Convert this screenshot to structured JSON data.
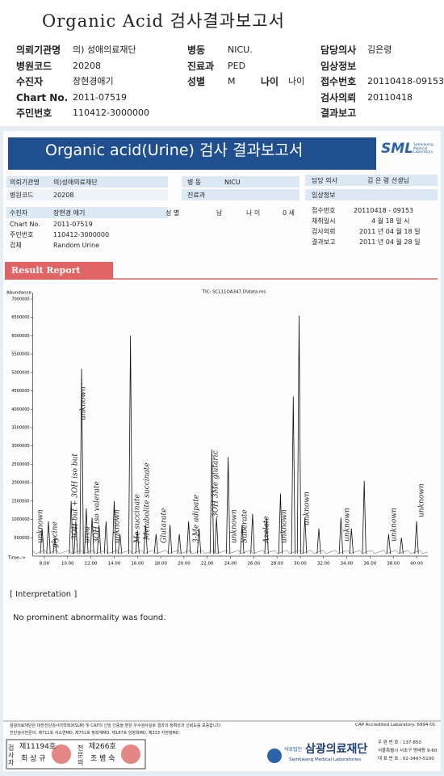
{
  "header": {
    "title": "Organic Acid 검사결과보고서"
  },
  "summary": {
    "rows": [
      [
        {
          "label": "의뢰기관명",
          "value": "의) 성애의료재단"
        },
        {
          "label": "병동",
          "value": "NICU."
        },
        {
          "label": "담당의사",
          "value": "김은령"
        }
      ],
      [
        {
          "label": "병원코드",
          "value": "20208"
        },
        {
          "label": "진료과",
          "value": "PED"
        },
        {
          "label": "임상정보"
        }
      ],
      [
        {
          "label": "수진자",
          "value": "장현경애기"
        },
        {
          "label": "성별",
          "value": "M"
        },
        {
          "label": "나이",
          "value": "나이"
        },
        {
          "label": "접수번호",
          "value": "20110418-09153"
        }
      ],
      [
        {
          "label": "Chart No.",
          "value": "2011-07519"
        },
        {
          "label": "검사의뢰",
          "value": "20110418"
        }
      ],
      [
        {
          "label": "주민번호",
          "value": "110412-3000000"
        },
        {
          "label": "결과보고"
        }
      ]
    ]
  },
  "report": {
    "title": "Organic acid(Urine) 검사 결과보고서",
    "logo": "SML",
    "logo_sub": "Samkwang Medical Laboratory",
    "left": [
      {
        "label": "의뢰기관명",
        "value": "의)성애의료재단"
      },
      {
        "label": "병원코드",
        "value": "20208"
      },
      {
        "label": "수진자",
        "value": "장현경 애기"
      },
      {
        "label": "Chart No.",
        "value": "2011-07519"
      },
      {
        "label": "주민번호",
        "value": "110412-3000000"
      },
      {
        "label": "검체",
        "value": "Random Urine"
      }
    ],
    "middle": [
      {
        "label": "병 동",
        "value": "NICU"
      },
      {
        "label": "진료과"
      },
      {
        "label": "성 별",
        "value": "남"
      },
      {
        "label": "나 이",
        "value": "0 세"
      }
    ],
    "right": [
      {
        "label": "담당 의사",
        "value": "김 은 령  선생님"
      },
      {
        "label": "임상정보"
      },
      {
        "label": "접수번호",
        "value": "20110418 - 09153"
      },
      {
        "label": "채취일시",
        "value": "4 월   18 일       시"
      },
      {
        "label": "검사의뢰",
        "value": "2011 년  04 월  18 일"
      },
      {
        "label": "결과보고",
        "value": "2011 년  04 월  28 일"
      }
    ],
    "section": "Result Report"
  },
  "chart_data": {
    "type": "chromatogram",
    "title": "TIC: SCL11OA347.D\\data.ms",
    "y_label": "Abundance",
    "x_label": "Time-->",
    "color": "#111111",
    "x": [
      7.8,
      8.35,
      8.9,
      10.3,
      10.7,
      11.2,
      11.6,
      12.1,
      12.7,
      13.3,
      14.0,
      14.5,
      15.4,
      16.0,
      16.7,
      17.6,
      18.8,
      19.6,
      20.4,
      21.3,
      22.4,
      22.8,
      23.8,
      25.0,
      25.9,
      27.1,
      28.3,
      29.4,
      29.9,
      30.4,
      31.6,
      33.5,
      34.4,
      35.5,
      37.6,
      38.7,
      40.0
    ],
    "values": [
      750000,
      950000,
      500000,
      1500000,
      950000,
      5100000,
      1300000,
      1050000,
      850000,
      950000,
      1500000,
      600000,
      6000000,
      700000,
      850000,
      600000,
      850000,
      600000,
      950000,
      750000,
      2900000,
      1050000,
      2700000,
      850000,
      1150000,
      1050000,
      1700000,
      4350000,
      6550000,
      1050000,
      750000,
      1050000,
      750000,
      2050000,
      600000,
      500000,
      950000
    ],
    "xlim": [
      7,
      41
    ],
    "ylim": [
      0,
      7000000
    ],
    "xticks": [
      {
        "value": 8,
        "label": "8.00"
      },
      {
        "value": 10,
        "label": "10.00"
      },
      {
        "value": 12,
        "label": "12.00"
      },
      {
        "value": 14,
        "label": "14.00"
      },
      {
        "value": 16,
        "label": "16.00"
      },
      {
        "value": 18,
        "label": "18.00"
      },
      {
        "value": 20,
        "label": "20.00"
      },
      {
        "value": 22,
        "label": "22.00"
      },
      {
        "value": 24,
        "label": "24.00"
      },
      {
        "value": 26,
        "label": "26.00"
      },
      {
        "value": 28,
        "label": "28.00"
      },
      {
        "value": 30,
        "label": "30.00"
      },
      {
        "value": 32,
        "label": "32.00"
      },
      {
        "value": 34,
        "label": "34.00"
      },
      {
        "value": 36,
        "label": "36.00"
      },
      {
        "value": 38,
        "label": "38.00"
      },
      {
        "value": 40,
        "label": "40.00"
      }
    ],
    "yticks": [
      500000,
      1000000,
      1500000,
      2000000,
      2500000,
      3000000,
      3500000,
      4000000,
      4500000,
      5000000,
      5500000,
      6000000,
      6500000,
      7000000
    ],
    "annotations": [
      "unknown",
      "glycine",
      "3OH but + 3OH iso but",
      "unknown",
      "urea",
      "3OH iso valerate",
      "unknown",
      "Me succinate",
      "Metabolite succinate",
      "Glutarate",
      "3-Me adipate",
      "3OH 3Me glutaric",
      "unknown",
      "Suberate",
      "Azelate",
      "unknown",
      "unknown",
      "unknown",
      "unknown",
      "unknown"
    ]
  },
  "interpretation": {
    "heading": "[  Interpretation  ]",
    "text": "No prominent abnormality was found."
  },
  "footer": {
    "note": "삼광의료재단은 대한진단검사의학회(KSLM) 및 CAP의 신임 인증을 받은 우수검사실로 결과의 정확성과 신뢰도를 보증합니다.",
    "cap": "CAP Accredited Laboratory.  6994-01",
    "doctors": "진단검사전문의:  제711호 서소연MD,  제751호 정희재MD,  제187호 임정희MD,  제333 지현정MD",
    "signs": [
      {
        "role": "검사자",
        "no": "제11194호",
        "name": "최 상 규"
      },
      {
        "role": "전문의",
        "no": "제266호",
        "name": "조 병 숙"
      }
    ],
    "org_type": "의료법인",
    "org": "삼광의료재단",
    "org_en": "Samkwang Medical Laboratories",
    "address": [
      "우 편 번 호 : 137-850",
      "서울특별시 서초구 방배동 9-60",
      "대 표 번 호 : 02-3497-5100"
    ]
  }
}
